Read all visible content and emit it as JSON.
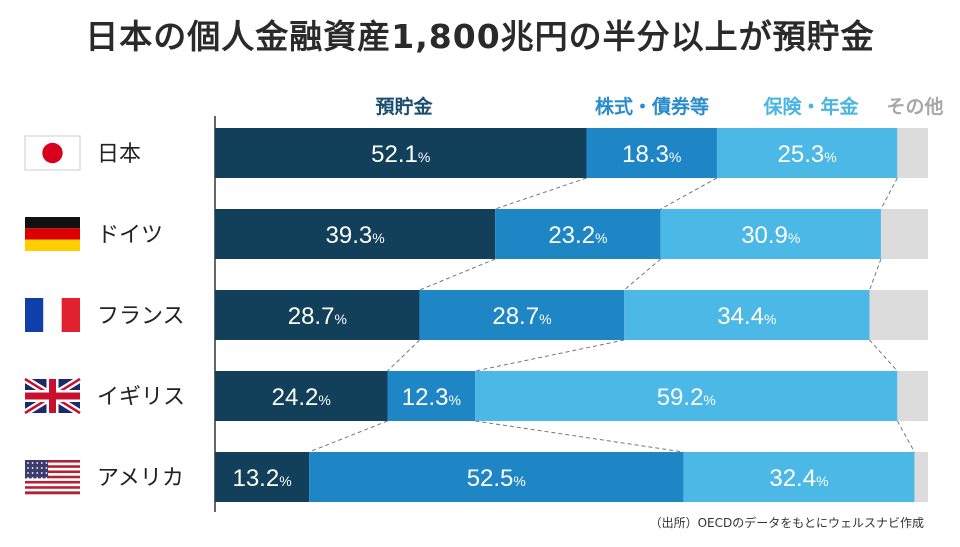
{
  "page": {
    "title": "日本の個人金融資産1,800兆円の半分以上が預貯金",
    "source": "（出所）OECDのデータをもとにウェルスナビ作成"
  },
  "colors": {
    "預貯金": "#123f5a",
    "株式・債券等": "#1f86c5",
    "保険・年金": "#4bb8e6",
    "その他": "#dcdcdc",
    "legend_dark": "#1b4d6e",
    "legend_mid": "#2a8ccc",
    "legend_light": "#48b5e3",
    "legend_gray": "#a8a8a8"
  },
  "chart_data": {
    "type": "bar",
    "orientation": "horizontal",
    "stacked": true,
    "unit": "%",
    "xlim": [
      0,
      100
    ],
    "categories": [
      "日本",
      "ドイツ",
      "フランス",
      "イギリス",
      "アメリカ"
    ],
    "category_icons": [
      "flag-japan-icon",
      "flag-germany-icon",
      "flag-france-icon",
      "flag-uk-icon",
      "flag-usa-icon"
    ],
    "series": [
      {
        "name": "預貯金",
        "values": [
          52.1,
          39.3,
          28.7,
          24.2,
          13.2
        ]
      },
      {
        "name": "株式・債券等",
        "values": [
          18.3,
          23.2,
          28.7,
          12.3,
          52.5
        ]
      },
      {
        "name": "保険・年金",
        "values": [
          25.3,
          30.9,
          34.4,
          59.2,
          32.4
        ]
      },
      {
        "name": "その他",
        "values": [
          4.3,
          6.6,
          8.2,
          4.3,
          1.9
        ]
      }
    ],
    "labeled_series": [
      "預貯金",
      "株式・債券等",
      "保険・年金"
    ],
    "legend": [
      "預貯金",
      "株式・債券等",
      "保険・年金",
      "その他"
    ],
    "legend_position": "top",
    "connector_lines": "dashed"
  }
}
